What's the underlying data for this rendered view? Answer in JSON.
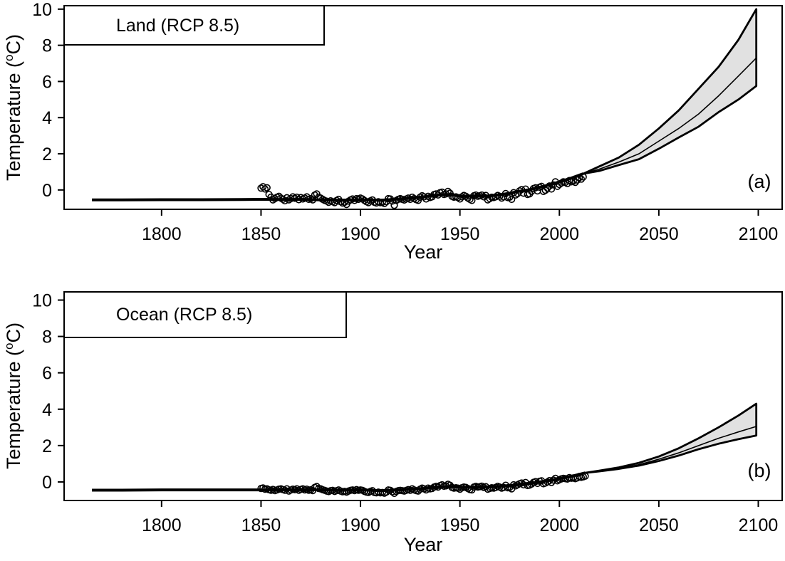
{
  "figure": {
    "background": "#ffffff",
    "stroke_color": "#000000",
    "band_fill": "#e1e1e1"
  },
  "labels": {
    "xlabel": "Year",
    "ylabel_pre": "Temperature (",
    "ylabel_sup": "o",
    "ylabel_post": "C)"
  },
  "chart_data": [
    {
      "type": "line",
      "panel_label": "(a)",
      "legend": "Land (RCP 8.5)",
      "legend_position": "top-left",
      "grid": false,
      "xlabel": "Year",
      "ylabel": "Temperature (oC)",
      "xlim": [
        1751,
        2112
      ],
      "ylim": [
        -1.07,
        10.19
      ],
      "x_ticks": [
        1800,
        1850,
        1900,
        1950,
        2000,
        2050,
        2100
      ],
      "y_ticks": [
        0,
        2,
        4,
        6,
        8,
        10
      ],
      "model_line": {
        "years": [
          1765,
          1780,
          1800,
          1820,
          1840,
          1850,
          1860,
          1870,
          1880,
          1890,
          1900,
          1910,
          1920,
          1925,
          1930,
          1935,
          1940,
          1945,
          1950,
          1955,
          1960,
          1965,
          1970,
          1975,
          1980,
          1985,
          1990,
          1995,
          2000,
          2005,
          2012
        ],
        "values": [
          -0.55,
          -0.55,
          -0.54,
          -0.54,
          -0.53,
          -0.52,
          -0.53,
          -0.52,
          -0.55,
          -0.57,
          -0.54,
          -0.57,
          -0.5,
          -0.45,
          -0.4,
          -0.33,
          -0.27,
          -0.25,
          -0.35,
          -0.33,
          -0.32,
          -0.33,
          -0.27,
          -0.18,
          -0.07,
          0.02,
          0.15,
          0.28,
          0.45,
          0.62,
          0.9
        ]
      },
      "observations": {
        "start_year": 1850,
        "values": [
          0.1,
          0.18,
          0.05,
          0.12,
          -0.25,
          -0.4,
          -0.55,
          -0.48,
          -0.4,
          -0.35,
          -0.45,
          -0.52,
          -0.6,
          -0.43,
          -0.55,
          -0.48,
          -0.38,
          -0.46,
          -0.4,
          -0.54,
          -0.42,
          -0.5,
          -0.45,
          -0.38,
          -0.52,
          -0.48,
          -0.55,
          -0.28,
          -0.22,
          -0.4,
          -0.45,
          -0.52,
          -0.58,
          -0.62,
          -0.68,
          -0.6,
          -0.65,
          -0.7,
          -0.58,
          -0.52,
          -0.65,
          -0.72,
          -0.68,
          -0.8,
          -0.62,
          -0.55,
          -0.5,
          -0.58,
          -0.48,
          -0.52,
          -0.45,
          -0.5,
          -0.58,
          -0.65,
          -0.7,
          -0.6,
          -0.55,
          -0.68,
          -0.72,
          -0.65,
          -0.7,
          -0.68,
          -0.75,
          -0.65,
          -0.48,
          -0.5,
          -0.62,
          -0.85,
          -0.58,
          -0.52,
          -0.48,
          -0.52,
          -0.56,
          -0.5,
          -0.45,
          -0.52,
          -0.4,
          -0.48,
          -0.54,
          -0.58,
          -0.4,
          -0.32,
          -0.38,
          -0.5,
          -0.35,
          -0.42,
          -0.38,
          -0.25,
          -0.22,
          -0.28,
          -0.15,
          -0.12,
          -0.25,
          -0.22,
          -0.08,
          -0.18,
          -0.35,
          -0.4,
          -0.38,
          -0.42,
          -0.5,
          -0.38,
          -0.3,
          -0.35,
          -0.45,
          -0.52,
          -0.58,
          -0.32,
          -0.28,
          -0.35,
          -0.32,
          -0.28,
          -0.38,
          -0.3,
          -0.55,
          -0.48,
          -0.4,
          -0.42,
          -0.38,
          -0.3,
          -0.35,
          -0.45,
          -0.38,
          -0.2,
          -0.42,
          -0.4,
          -0.52,
          -0.15,
          -0.28,
          -0.2,
          -0.05,
          0.02,
          -0.18,
          0.05,
          -0.25,
          -0.22,
          -0.08,
          0.08,
          0.12,
          -0.05,
          0.15,
          0.2,
          -0.08,
          -0.02,
          0.1,
          0.22,
          0.05,
          0.28,
          0.45,
          0.2,
          0.3,
          0.38,
          0.45,
          0.42,
          0.35,
          0.52,
          0.45,
          0.5,
          0.42,
          0.55,
          0.68,
          0.6,
          0.72
        ]
      },
      "projection_band": {
        "years": [
          2012,
          2020,
          2030,
          2040,
          2050,
          2060,
          2070,
          2080,
          2090,
          2099
        ],
        "lower": [
          0.9,
          1.05,
          1.38,
          1.7,
          2.28,
          2.9,
          3.5,
          4.3,
          5.0,
          5.75
        ],
        "mid": [
          0.9,
          1.15,
          1.55,
          2.0,
          2.7,
          3.4,
          4.2,
          5.2,
          6.3,
          7.3
        ],
        "upper": [
          0.9,
          1.3,
          1.8,
          2.5,
          3.4,
          4.4,
          5.6,
          6.8,
          8.3,
          10.0
        ]
      }
    },
    {
      "type": "line",
      "panel_label": "(b)",
      "legend": "Ocean (RCP 8.5)",
      "legend_position": "top-left",
      "grid": false,
      "xlabel": "Year",
      "ylabel": "Temperature (oC)",
      "xlim": [
        1751,
        2112
      ],
      "ylim": [
        -1.02,
        10.45
      ],
      "x_ticks": [
        1800,
        1850,
        1900,
        1950,
        2000,
        2050,
        2100
      ],
      "y_ticks": [
        0,
        2,
        4,
        6,
        8,
        10
      ],
      "model_line": {
        "years": [
          1765,
          1780,
          1800,
          1820,
          1840,
          1850,
          1860,
          1870,
          1880,
          1890,
          1900,
          1910,
          1920,
          1930,
          1940,
          1945,
          1950,
          1955,
          1960,
          1965,
          1970,
          1975,
          1980,
          1985,
          1990,
          1995,
          2000,
          2005,
          2013
        ],
        "values": [
          -0.45,
          -0.45,
          -0.44,
          -0.44,
          -0.44,
          -0.44,
          -0.44,
          -0.43,
          -0.44,
          -0.46,
          -0.44,
          -0.48,
          -0.44,
          -0.37,
          -0.27,
          -0.24,
          -0.3,
          -0.29,
          -0.28,
          -0.28,
          -0.24,
          -0.2,
          -0.14,
          -0.08,
          0.0,
          0.08,
          0.18,
          0.28,
          0.5
        ]
      },
      "observations": {
        "start_year": 1850,
        "values": [
          -0.36,
          -0.33,
          -0.4,
          -0.38,
          -0.43,
          -0.46,
          -0.41,
          -0.48,
          -0.44,
          -0.4,
          -0.38,
          -0.42,
          -0.46,
          -0.38,
          -0.5,
          -0.44,
          -0.4,
          -0.43,
          -0.38,
          -0.46,
          -0.41,
          -0.38,
          -0.44,
          -0.4,
          -0.46,
          -0.43,
          -0.48,
          -0.3,
          -0.25,
          -0.36,
          -0.38,
          -0.43,
          -0.46,
          -0.5,
          -0.53,
          -0.48,
          -0.46,
          -0.52,
          -0.48,
          -0.44,
          -0.5,
          -0.54,
          -0.52,
          -0.56,
          -0.5,
          -0.46,
          -0.44,
          -0.48,
          -0.42,
          -0.46,
          -0.44,
          -0.46,
          -0.52,
          -0.56,
          -0.58,
          -0.52,
          -0.48,
          -0.58,
          -0.6,
          -0.56,
          -0.6,
          -0.58,
          -0.62,
          -0.56,
          -0.44,
          -0.46,
          -0.54,
          -0.63,
          -0.52,
          -0.48,
          -0.46,
          -0.48,
          -0.5,
          -0.46,
          -0.42,
          -0.46,
          -0.38,
          -0.44,
          -0.48,
          -0.5,
          -0.4,
          -0.34,
          -0.38,
          -0.44,
          -0.34,
          -0.38,
          -0.36,
          -0.28,
          -0.24,
          -0.28,
          -0.2,
          -0.16,
          -0.24,
          -0.22,
          -0.13,
          -0.18,
          -0.3,
          -0.34,
          -0.32,
          -0.34,
          -0.4,
          -0.32,
          -0.28,
          -0.3,
          -0.36,
          -0.42,
          -0.44,
          -0.28,
          -0.24,
          -0.28,
          -0.26,
          -0.23,
          -0.3,
          -0.26,
          -0.4,
          -0.36,
          -0.32,
          -0.34,
          -0.3,
          -0.24,
          -0.28,
          -0.34,
          -0.3,
          -0.18,
          -0.32,
          -0.3,
          -0.38,
          -0.16,
          -0.22,
          -0.16,
          -0.1,
          -0.06,
          -0.16,
          -0.03,
          -0.2,
          -0.18,
          -0.12,
          -0.02,
          0.02,
          -0.08,
          0.04,
          0.06,
          -0.1,
          -0.06,
          0.0,
          0.07,
          -0.03,
          0.1,
          0.2,
          0.06,
          0.12,
          0.17,
          0.2,
          0.18,
          0.16,
          0.24,
          0.2,
          0.22,
          0.18,
          0.22,
          0.3,
          0.25,
          0.28,
          0.32
        ]
      },
      "projection_band": {
        "years": [
          2013,
          2020,
          2030,
          2040,
          2050,
          2060,
          2070,
          2080,
          2090,
          2099
        ],
        "lower": [
          0.5,
          0.58,
          0.72,
          0.9,
          1.15,
          1.45,
          1.8,
          2.1,
          2.35,
          2.55
        ],
        "mid": [
          0.5,
          0.6,
          0.75,
          0.95,
          1.25,
          1.6,
          2.0,
          2.4,
          2.75,
          3.05
        ],
        "upper": [
          0.5,
          0.62,
          0.8,
          1.05,
          1.4,
          1.85,
          2.4,
          3.0,
          3.65,
          4.3
        ]
      }
    }
  ]
}
